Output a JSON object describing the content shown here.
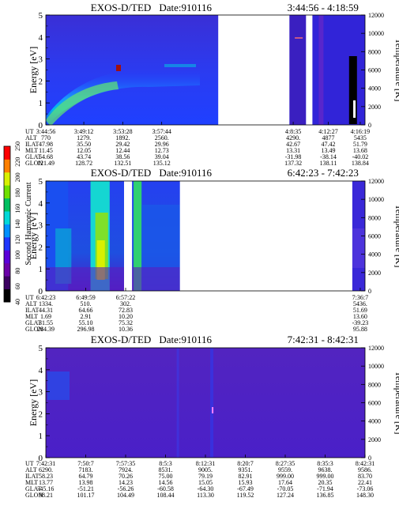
{
  "colorbar": {
    "label": "Second Harmonic Current",
    "ticks": [
      "40",
      "60",
      "80",
      "100",
      "120",
      "140",
      "160",
      "180",
      "200",
      "220",
      "250"
    ],
    "colors": [
      "#000000",
      "#3b0060",
      "#6a00a8",
      "#5a00d8",
      "#1f36ff",
      "#0090ff",
      "#00d8d8",
      "#00c060",
      "#70e000",
      "#d8f000",
      "#ff8000",
      "#ff0000"
    ]
  },
  "chart_data": [
    {
      "type": "heatmap",
      "title": "EXOS-D/TED",
      "date_text": "Date:910116",
      "time_range_text": "3:44:56 - 4:18:59",
      "ylabel": "Energy [eV]",
      "y2label": "Temperature [K]",
      "ylim": [
        0,
        5
      ],
      "y2lim": [
        0,
        12000
      ],
      "yticks": [
        "0",
        "1",
        "2",
        "3",
        "4",
        "5"
      ],
      "y2ticks": [
        "0",
        "2000",
        "4000",
        "6000",
        "8000",
        "10000",
        "12000"
      ],
      "gaps": [
        [
          0.54,
          0.763
        ],
        [
          0.815,
          0.835
        ]
      ],
      "orbit": {
        "row_labels": [
          "UT",
          "ALT",
          "ILAT",
          "MLT",
          "GLAT",
          "GLON"
        ],
        "columns": [
          {
            "at": 0.0,
            "values": [
              "3:44:56",
              "770",
              "47.98",
              "11.45",
              "54.68",
              "121.49"
            ]
          },
          {
            "at": 0.119,
            "values": [
              "3:49:12",
              "1279.",
              "35.50",
              "12.05",
              "43.74",
              "128.72"
            ]
          },
          {
            "at": 0.241,
            "values": [
              "3:53:28",
              "1892.",
              "29.42",
              "12.44",
              "38.56",
              "132.51"
            ]
          },
          {
            "at": 0.363,
            "values": [
              "3:57:44",
              "2560.",
              "29.96",
              "12.73",
              "39.04",
              "135.12"
            ]
          },
          {
            "at": 0.775,
            "values": [
              "4:8:35",
              "4290.",
              "42.67",
              "13.31",
              "-31.98",
              "137.32"
            ]
          },
          {
            "at": 0.885,
            "values": [
              "4:12:27",
              "4877",
              "47.42",
              "13.49",
              "-38.14",
              "138.11"
            ]
          },
          {
            "at": 0.985,
            "values": [
              "4:16:19",
              "5435",
              "51.79",
              "13.68",
              "-40.02",
              "138.84"
            ]
          }
        ]
      }
    },
    {
      "type": "heatmap",
      "title": "EXOS-D/TED",
      "date_text": "Date:910116",
      "time_range_text": "6:42:23 - 7:42:23",
      "ylabel": "Energy [eV]",
      "y2label": "Temperature [K]",
      "ylim": [
        0,
        5
      ],
      "y2lim": [
        0,
        12000
      ],
      "yticks": [
        "0",
        "1",
        "2",
        "3",
        "4",
        "5"
      ],
      "y2ticks": [
        "0",
        "2000",
        "4000",
        "6000",
        "8000",
        "10000",
        "12000"
      ],
      "gaps": [
        [
          0.245,
          0.27
        ],
        [
          0.42,
          0.96
        ]
      ],
      "orbit": {
        "row_labels": [
          "UT",
          "ALT",
          "ILAT",
          "MLT",
          "GLAT",
          "GLON"
        ],
        "columns": [
          {
            "at": 0.0,
            "values": [
              "6:42:23",
              "1334.",
              "44.31",
              "1.69",
              "31.55",
              "284.39"
            ]
          },
          {
            "at": 0.125,
            "values": [
              "6:49:59",
              "510.",
              "64.66",
              "2.91",
              "55.10",
              "296.98"
            ]
          },
          {
            "at": 0.25,
            "values": [
              "6:57:22",
              "302.",
              "72.83",
              "10.20",
              "75.32",
              "10.36"
            ]
          },
          {
            "at": 0.985,
            "values": [
              "7:36:7",
              "5436.",
              "51.69",
              "13.60",
              "-39.23",
              "95.88"
            ]
          }
        ]
      }
    },
    {
      "type": "heatmap",
      "title": "EXOS-D/TED",
      "date_text": "Date:910116",
      "time_range_text": "7:42:31 - 8:42:31",
      "ylabel": "Energy [eV]",
      "y2label": "Temperature [K]",
      "ylim": [
        0,
        5
      ],
      "y2lim": [
        0,
        12000
      ],
      "yticks": [
        "0",
        "1",
        "2",
        "3",
        "4",
        "5"
      ],
      "y2ticks": [
        "0",
        "2000",
        "4000",
        "6000",
        "8000",
        "10000",
        "12000"
      ],
      "gaps": [],
      "orbit": {
        "row_labels": [
          "UT",
          "ALT",
          "ILAT",
          "MLT",
          "GLAT",
          "GLON"
        ],
        "columns": [
          {
            "at": 0.0,
            "values": [
              "7:42:31",
              "6290.",
              "58.23",
              "13.77",
              "-45.16",
              "98.21"
            ]
          },
          {
            "at": 0.125,
            "values": [
              "7:50:7",
              "7183.",
              "64.79",
              "13.98",
              "-51.21",
              "101.17"
            ]
          },
          {
            "at": 0.25,
            "values": [
              "7:57:35",
              "7924.",
              "70.26",
              "14.23",
              "-56.26",
              "104.49"
            ]
          },
          {
            "at": 0.375,
            "values": [
              "8:5:3",
              "8531.",
              "75.00",
              "14.56",
              "-60.58",
              "108.44"
            ]
          },
          {
            "at": 0.5,
            "values": [
              "8:12:31",
              "9005.",
              "79.19",
              "15.05",
              "-64.30",
              "113.30"
            ]
          },
          {
            "at": 0.625,
            "values": [
              "8:20:7",
              "9351.",
              "82.91",
              "15.93",
              "-67.49",
              "119.52"
            ]
          },
          {
            "at": 0.75,
            "values": [
              "8:27:35",
              "9559.",
              "999.00",
              "17.64",
              "-70.05",
              "127.24"
            ]
          },
          {
            "at": 0.875,
            "values": [
              "8:35:3",
              "9638.",
              "999.00",
              "20.35",
              "-71.94",
              "136.85"
            ]
          },
          {
            "at": 1.0,
            "values": [
              "8:42:31",
              "9586.",
              "83.70",
              "22.41",
              "-73.06",
              "148.30"
            ]
          }
        ]
      }
    }
  ]
}
